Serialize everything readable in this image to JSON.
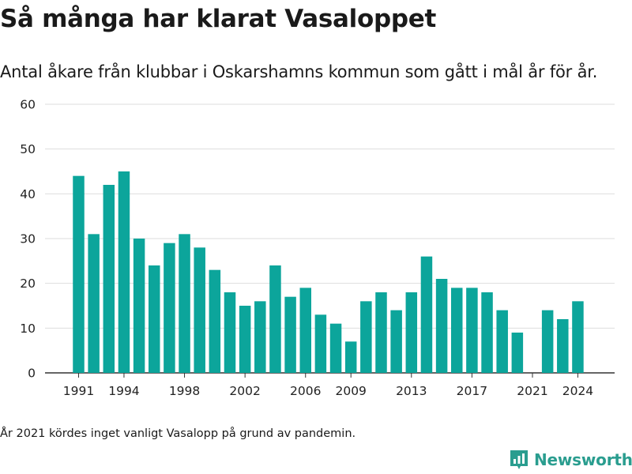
{
  "title": "Så många har klarat Vasaloppet",
  "subtitle": "Antal åkare från klubbar i Oskarshamns kommun som gått i mål år för år.",
  "footnote": "År 2021 kördes inget vanligt Vasalopp på grund av pandemin.",
  "brand": {
    "name": "Newsworthy",
    "logo_icon": "bar-chart-logo-icon",
    "color": "#2a9d8f"
  },
  "colors": {
    "bar": "#0ca59b",
    "grid": "#dddddd",
    "axis": "#333333",
    "text": "#222222"
  },
  "chart_data": {
    "type": "bar",
    "title": "Så många har klarat Vasaloppet",
    "subtitle": "Antal åkare från klubbar i Oskarshamns kommun som gått i mål år för år.",
    "xlabel": "",
    "ylabel": "",
    "ylim": [
      0,
      60
    ],
    "yticks": [
      0,
      10,
      20,
      30,
      40,
      50,
      60
    ],
    "xticks": [
      1991,
      1994,
      1998,
      2002,
      2006,
      2009,
      2013,
      2017,
      2021,
      2024
    ],
    "grid": true,
    "legend": "none",
    "categories": [
      1991,
      1992,
      1993,
      1994,
      1995,
      1996,
      1997,
      1998,
      1999,
      2000,
      2001,
      2002,
      2003,
      2004,
      2005,
      2006,
      2007,
      2008,
      2009,
      2010,
      2011,
      2012,
      2013,
      2014,
      2015,
      2016,
      2017,
      2018,
      2019,
      2020,
      2021,
      2022,
      2023,
      2024
    ],
    "values": [
      44,
      31,
      42,
      45,
      30,
      24,
      29,
      31,
      28,
      23,
      18,
      15,
      16,
      24,
      17,
      19,
      13,
      11,
      7,
      16,
      18,
      14,
      18,
      26,
      21,
      19,
      19,
      18,
      14,
      9,
      0,
      14,
      12,
      16
    ]
  }
}
